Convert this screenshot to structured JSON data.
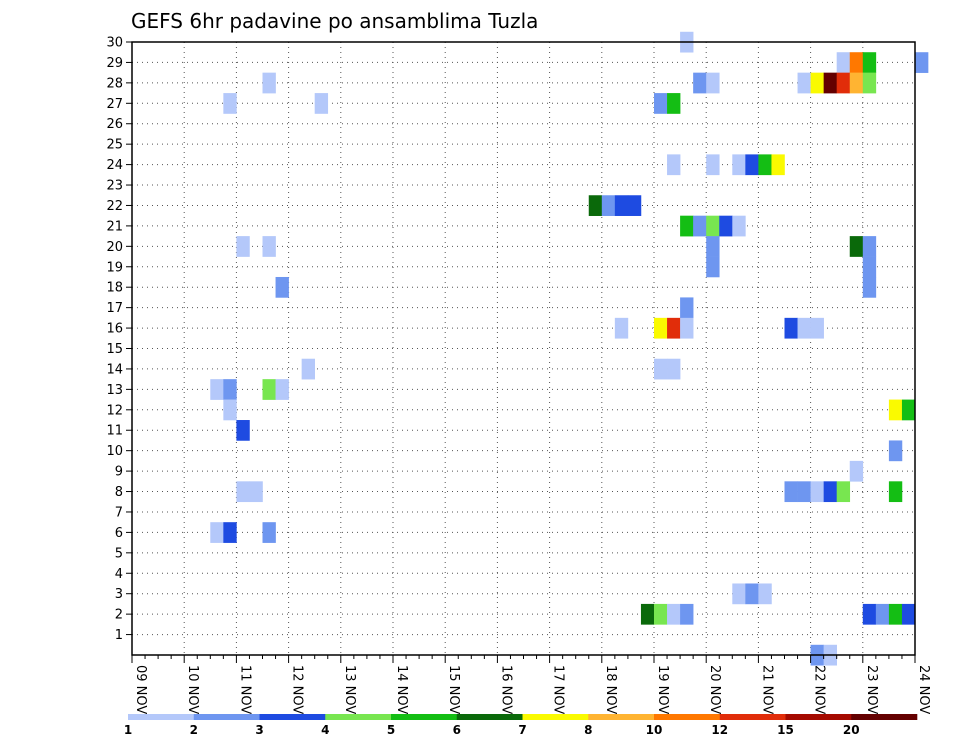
{
  "chart_data": {
    "type": "heatmap",
    "title": "GEFS 6hr padavine po ansamblima Tuzla",
    "xlabel": "",
    "ylabel": "",
    "x_ticks": [
      "09 NOV",
      "10 NOV",
      "11 NOV",
      "12 NOV",
      "13 NOV",
      "14 NOV",
      "15 NOV",
      "16 NOV",
      "17 NOV",
      "18 NOV",
      "19 NOV",
      "20 NOV",
      "21 NOV",
      "22 NOV",
      "23 NOV",
      "24 NOV"
    ],
    "x_range_days": [
      0,
      15
    ],
    "y_range": [
      0,
      30
    ],
    "y_ticks": [
      "1",
      "2",
      "3",
      "4",
      "5",
      "6",
      "7",
      "8",
      "9",
      "10",
      "11",
      "12",
      "13",
      "14",
      "15",
      "16",
      "17",
      "18",
      "19",
      "20",
      "21",
      "22",
      "23",
      "24",
      "25",
      "26",
      "27",
      "28",
      "29",
      "30"
    ],
    "grid": "dotted",
    "step": "6 hours",
    "colorbar": {
      "labels": [
        "1",
        "2",
        "3",
        "4",
        "5",
        "6",
        "7",
        "8",
        "10",
        "12",
        "15",
        "20"
      ],
      "colors": [
        "#b4c8fa",
        "#6e96f0",
        "#1e4be1",
        "#78e650",
        "#14be14",
        "#0a690a",
        "#fafa00",
        "#ffb432",
        "#ff7800",
        "#e12d0a",
        "#a50a00",
        "#640000"
      ]
    },
    "cells": [
      {
        "m": 30,
        "t": "19 NOV 12",
        "c": 0
      },
      {
        "m": 29,
        "t": "22 NOV 12",
        "c": 0
      },
      {
        "m": 29,
        "t": "22 NOV 18",
        "c": 8
      },
      {
        "m": 29,
        "t": "23 NOV 00",
        "c": 4
      },
      {
        "m": 29,
        "t": "24 NOV 00",
        "c": 1
      },
      {
        "m": 28,
        "t": "11 NOV 12",
        "c": 0
      },
      {
        "m": 28,
        "t": "19 NOV 18",
        "c": 1
      },
      {
        "m": 28,
        "t": "20 NOV 00",
        "c": 0
      },
      {
        "m": 28,
        "t": "21 NOV 18",
        "c": 0
      },
      {
        "m": 28,
        "t": "22 NOV 00",
        "c": 6
      },
      {
        "m": 28,
        "t": "22 NOV 06",
        "c": 11
      },
      {
        "m": 28,
        "t": "22 NOV 12",
        "c": 9
      },
      {
        "m": 28,
        "t": "22 NOV 18",
        "c": 7
      },
      {
        "m": 28,
        "t": "23 NOV 00",
        "c": 3
      },
      {
        "m": 27,
        "t": "10 NOV 18",
        "c": 0
      },
      {
        "m": 27,
        "t": "12 NOV 12",
        "c": 0
      },
      {
        "m": 27,
        "t": "19 NOV 00",
        "c": 1
      },
      {
        "m": 27,
        "t": "19 NOV 06",
        "c": 4
      },
      {
        "m": 24,
        "t": "19 NOV 06",
        "c": 0
      },
      {
        "m": 24,
        "t": "20 NOV 00",
        "c": 0
      },
      {
        "m": 24,
        "t": "20 NOV 12",
        "c": 0
      },
      {
        "m": 24,
        "t": "20 NOV 18",
        "c": 2
      },
      {
        "m": 24,
        "t": "21 NOV 00",
        "c": 4
      },
      {
        "m": 24,
        "t": "21 NOV 06",
        "c": 6
      },
      {
        "m": 22,
        "t": "17 NOV 18",
        "c": 5
      },
      {
        "m": 22,
        "t": "18 NOV 00",
        "c": 1
      },
      {
        "m": 22,
        "t": "18 NOV 06",
        "c": 2
      },
      {
        "m": 22,
        "t": "18 NOV 12",
        "c": 2
      },
      {
        "m": 21,
        "t": "19 NOV 12",
        "c": 4
      },
      {
        "m": 21,
        "t": "19 NOV 18",
        "c": 1
      },
      {
        "m": 21,
        "t": "20 NOV 00",
        "c": 3
      },
      {
        "m": 21,
        "t": "20 NOV 06",
        "c": 2
      },
      {
        "m": 21,
        "t": "20 NOV 12",
        "c": 0
      },
      {
        "m": 20,
        "t": "11 NOV 00",
        "c": 0
      },
      {
        "m": 20,
        "t": "11 NOV 12",
        "c": 0
      },
      {
        "m": 20,
        "t": "20 NOV 00",
        "c": 1
      },
      {
        "m": 20,
        "t": "22 NOV 18",
        "c": 5
      },
      {
        "m": 20,
        "t": "23 NOV 00",
        "c": 1
      },
      {
        "m": 19,
        "t": "20 NOV 00",
        "c": 1
      },
      {
        "m": 19,
        "t": "23 NOV 00",
        "c": 1
      },
      {
        "m": 18,
        "t": "11 NOV 18",
        "c": 1
      },
      {
        "m": 18,
        "t": "23 NOV 00",
        "c": 1
      },
      {
        "m": 17,
        "t": "19 NOV 12",
        "c": 1
      },
      {
        "m": 16,
        "t": "18 NOV 06",
        "c": 0
      },
      {
        "m": 16,
        "t": "19 NOV 00",
        "c": 6
      },
      {
        "m": 16,
        "t": "19 NOV 06",
        "c": 9
      },
      {
        "m": 16,
        "t": "19 NOV 12",
        "c": 0
      },
      {
        "m": 16,
        "t": "21 NOV 12",
        "c": 2
      },
      {
        "m": 16,
        "t": "21 NOV 18",
        "c": 0
      },
      {
        "m": 16,
        "t": "22 NOV 00",
        "c": 0
      },
      {
        "m": 14,
        "t": "12 NOV 06",
        "c": 0
      },
      {
        "m": 14,
        "t": "19 NOV 00",
        "c": 0
      },
      {
        "m": 14,
        "t": "19 NOV 06",
        "c": 0
      },
      {
        "m": 13,
        "t": "10 NOV 12",
        "c": 0
      },
      {
        "m": 13,
        "t": "10 NOV 18",
        "c": 1
      },
      {
        "m": 13,
        "t": "11 NOV 12",
        "c": 3
      },
      {
        "m": 13,
        "t": "11 NOV 18",
        "c": 0
      },
      {
        "m": 12,
        "t": "10 NOV 18",
        "c": 0
      },
      {
        "m": 12,
        "t": "23 NOV 12",
        "c": 6
      },
      {
        "m": 12,
        "t": "23 NOV 18",
        "c": 4
      },
      {
        "m": 11,
        "t": "11 NOV 00",
        "c": 2
      },
      {
        "m": 10,
        "t": "23 NOV 12",
        "c": 1
      },
      {
        "m": 9,
        "t": "22 NOV 18",
        "c": 0
      },
      {
        "m": 8,
        "t": "11 NOV 00",
        "c": 0
      },
      {
        "m": 8,
        "t": "11 NOV 06",
        "c": 0
      },
      {
        "m": 8,
        "t": "21 NOV 12",
        "c": 1
      },
      {
        "m": 8,
        "t": "21 NOV 18",
        "c": 1
      },
      {
        "m": 8,
        "t": "22 NOV 00",
        "c": 0
      },
      {
        "m": 8,
        "t": "22 NOV 06",
        "c": 2
      },
      {
        "m": 8,
        "t": "22 NOV 12",
        "c": 3
      },
      {
        "m": 8,
        "t": "23 NOV 12",
        "c": 4
      },
      {
        "m": 6,
        "t": "10 NOV 12",
        "c": 0
      },
      {
        "m": 6,
        "t": "10 NOV 18",
        "c": 2
      },
      {
        "m": 6,
        "t": "11 NOV 12",
        "c": 1
      },
      {
        "m": 3,
        "t": "20 NOV 12",
        "c": 0
      },
      {
        "m": 3,
        "t": "20 NOV 18",
        "c": 1
      },
      {
        "m": 3,
        "t": "21 NOV 00",
        "c": 0
      },
      {
        "m": 2,
        "t": "18 NOV 18",
        "c": 5
      },
      {
        "m": 2,
        "t": "19 NOV 00",
        "c": 3
      },
      {
        "m": 2,
        "t": "19 NOV 06",
        "c": 0
      },
      {
        "m": 2,
        "t": "19 NOV 12",
        "c": 1
      },
      {
        "m": 2,
        "t": "23 NOV 00",
        "c": 2
      },
      {
        "m": 2,
        "t": "23 NOV 06",
        "c": 1
      },
      {
        "m": 2,
        "t": "23 NOV 12",
        "c": 4
      },
      {
        "m": 2,
        "t": "23 NOV 18",
        "c": 2
      },
      {
        "m": 0,
        "t": "22 NOV 00",
        "c": 1
      },
      {
        "m": 0,
        "t": "22 NOV 06",
        "c": 0
      }
    ]
  }
}
